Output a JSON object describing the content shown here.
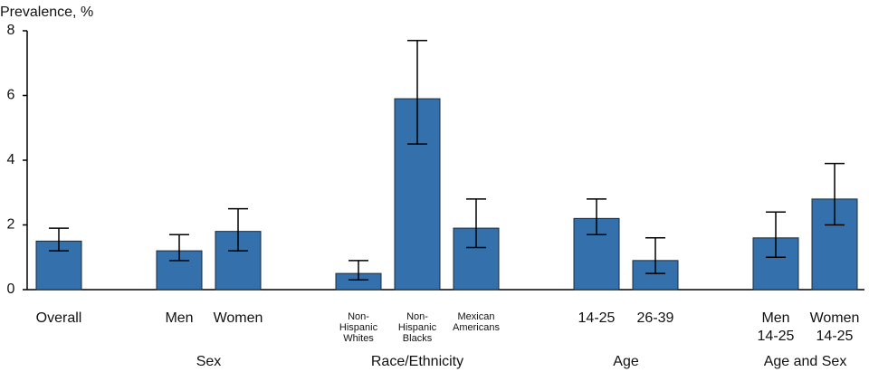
{
  "chart_data": {
    "type": "bar",
    "y_label": "Prevalence, %",
    "categories": [
      [
        "Overall"
      ],
      [
        "Men"
      ],
      [
        "Women"
      ],
      [
        "Non-",
        "Hispanic",
        "Whites"
      ],
      [
        "Non-",
        "Hispanic",
        "Blacks"
      ],
      [
        "Mexican",
        "Americans"
      ],
      [
        "14-25"
      ],
      [
        "26-39"
      ],
      [
        "Men",
        "14-25"
      ],
      [
        "Women",
        "14-25"
      ]
    ],
    "groups": [
      null,
      "Sex",
      "Sex",
      "Race/Ethnicity",
      "Race/Ethnicity",
      "Race/Ethnicity",
      "Age",
      "Age",
      "Age and Sex",
      "Age and Sex"
    ],
    "values": [
      1.5,
      1.2,
      1.8,
      0.5,
      5.9,
      1.9,
      2.2,
      0.9,
      1.6,
      2.8
    ],
    "lower": [
      1.2,
      0.9,
      1.2,
      0.3,
      4.5,
      1.3,
      1.7,
      0.5,
      1.0,
      2.0
    ],
    "upper": [
      1.9,
      1.7,
      2.5,
      0.9,
      7.7,
      2.8,
      2.8,
      1.6,
      2.4,
      3.9
    ],
    "color": "#3470ab",
    "ylim": [
      0,
      8
    ],
    "yticks": [
      0,
      2,
      4,
      6,
      8
    ],
    "grid": false
  }
}
